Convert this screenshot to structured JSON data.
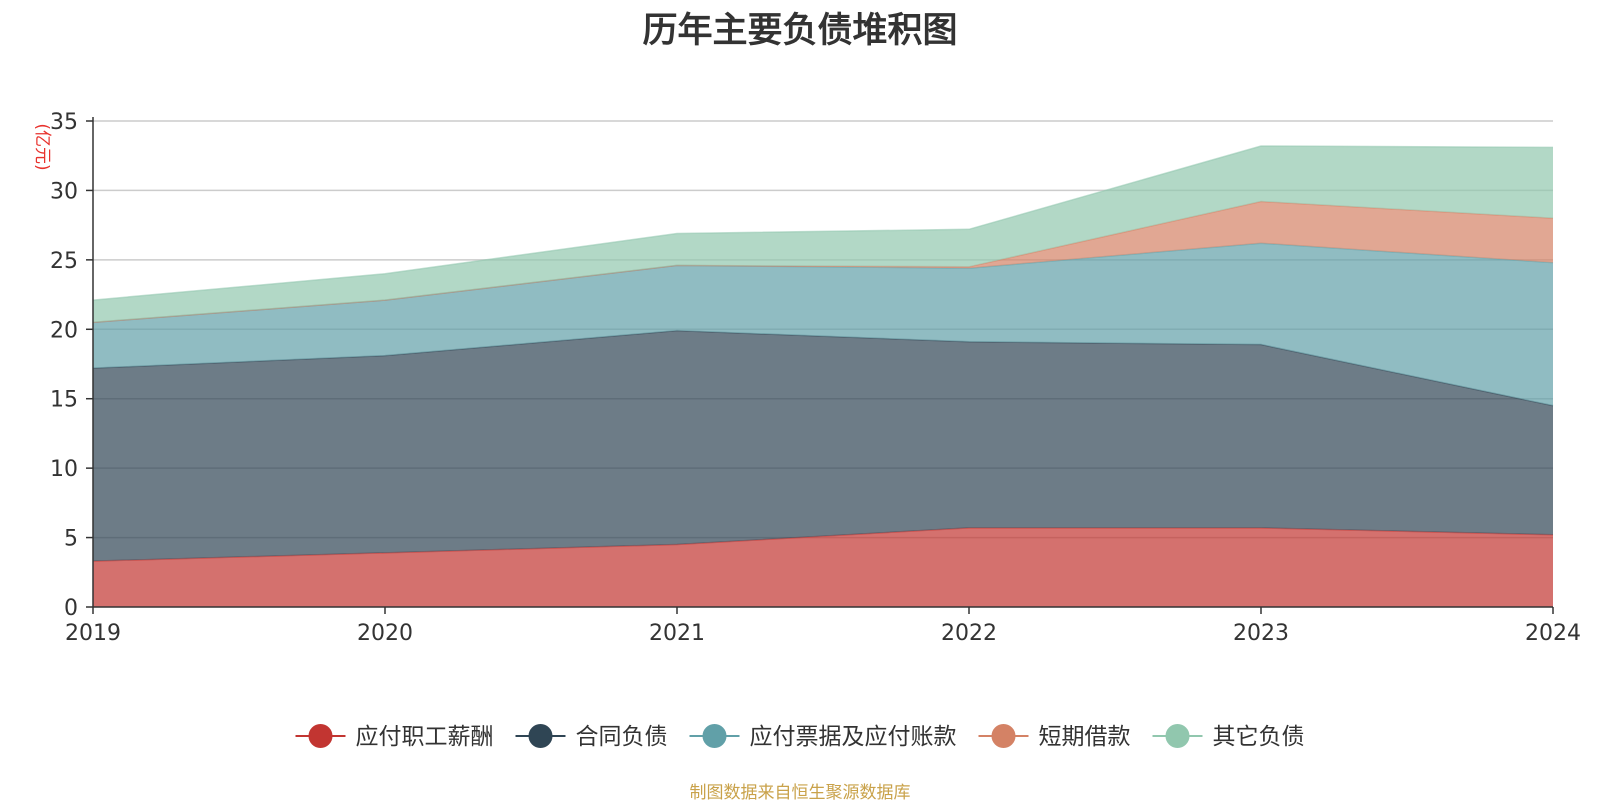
{
  "chart_data": {
    "type": "area",
    "stacked": true,
    "title": "历年主要负债堆积图",
    "ylabel": "(亿元)",
    "ylabel_color": "#e8322d",
    "x": [
      "2019",
      "2020",
      "2021",
      "2022",
      "2023",
      "2024"
    ],
    "ylim": [
      0,
      35
    ],
    "yticks": [
      0,
      5,
      10,
      15,
      20,
      25,
      30,
      35
    ],
    "grid": true,
    "legend_position": "bottom",
    "series": [
      {
        "name": "应付职工薪酬",
        "color": "#c23531",
        "values": [
          3.3,
          3.9,
          4.5,
          5.7,
          5.7,
          5.2
        ]
      },
      {
        "name": "合同负债",
        "color": "#2f4554",
        "values": [
          13.9,
          14.2,
          15.4,
          13.4,
          13.2,
          9.3
        ]
      },
      {
        "name": "应付票据及应付账款",
        "color": "#61a0a8",
        "values": [
          3.3,
          4.0,
          4.7,
          5.3,
          7.3,
          10.3
        ]
      },
      {
        "name": "短期借款",
        "color": "#d48265",
        "values": [
          0,
          0,
          0,
          0.1,
          3.0,
          3.2
        ]
      },
      {
        "name": "其它负债",
        "color": "#91c7ae",
        "values": [
          1.6,
          1.9,
          2.3,
          2.7,
          4.0,
          5.1
        ]
      }
    ]
  },
  "footer": {
    "source": "制图数据来自恒生聚源数据库"
  }
}
